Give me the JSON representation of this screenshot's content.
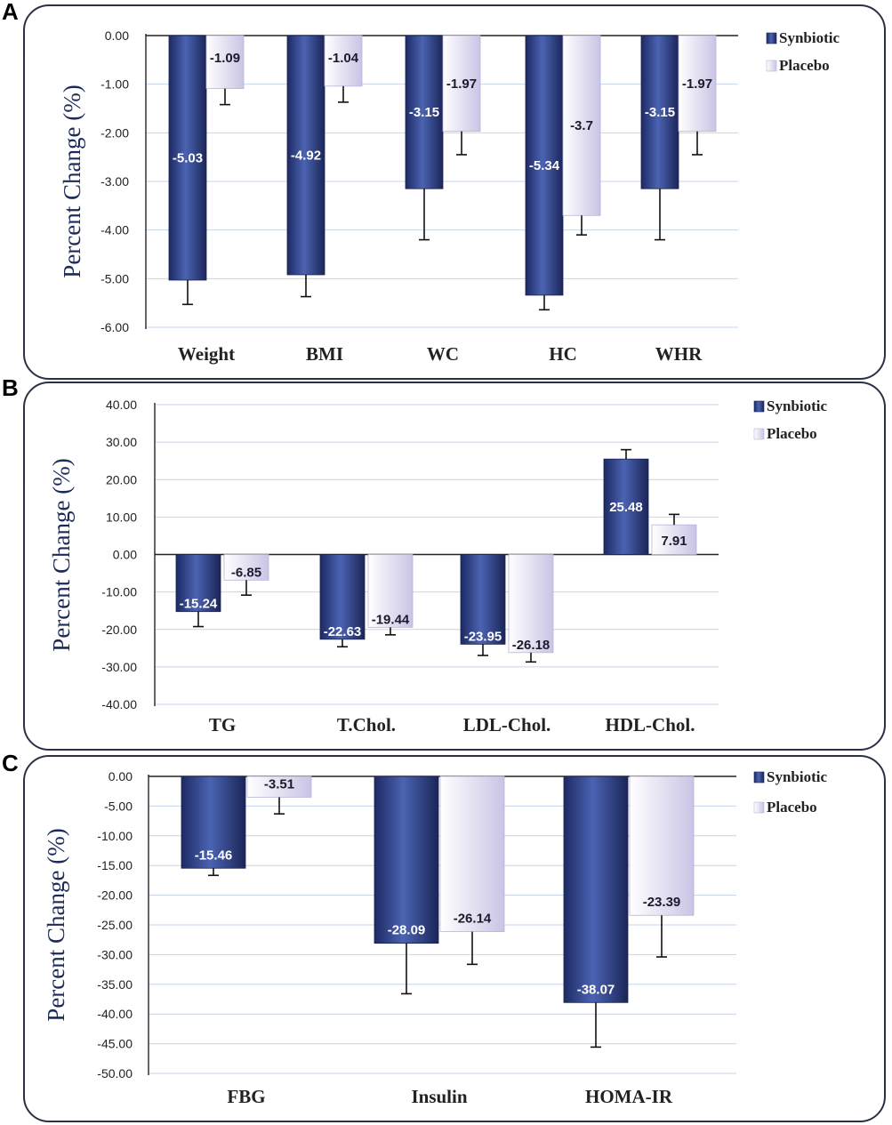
{
  "panels": [
    {
      "letter": "A",
      "legend": [
        "Synbiotic",
        "Placebo"
      ]
    },
    {
      "letter": "B",
      "legend": [
        "Synbiotic",
        "Placebo"
      ]
    },
    {
      "letter": "C",
      "legend": [
        "Synbiotic",
        "Placebo"
      ]
    }
  ],
  "colors": {
    "synbiotic_top": "#2d3f82",
    "synbiotic_mid": "#4a63b6",
    "synbiotic_bottom": "#1a2456",
    "placebo_light": "#ffffff",
    "placebo_dark": "#cbc7e6",
    "panel_border": "#2a3147",
    "grid": "#c6d4ec"
  },
  "chart_data": [
    {
      "type": "bar",
      "title": "",
      "xlabel": "",
      "ylabel": "Percent Change (%)",
      "ylim": [
        -6,
        0
      ],
      "yticks": [
        "0.00",
        "-1.00",
        "-2.00",
        "-3.00",
        "-4.00",
        "-5.00",
        "-6.00"
      ],
      "categories": [
        "Weight",
        "BMI",
        "WC",
        "HC",
        "WHR"
      ],
      "series": [
        {
          "name": "Synbiotic",
          "values": [
            -5.03,
            -4.92,
            -3.15,
            -5.34,
            -3.15
          ],
          "labels": [
            "-5.03",
            "-4.92",
            "-3.15",
            "-5.34",
            "-3.15"
          ],
          "errors": [
            0.5,
            0.45,
            1.05,
            0.3,
            1.05
          ]
        },
        {
          "name": "Placebo",
          "values": [
            -1.09,
            -1.04,
            -1.97,
            -3.7,
            -1.97
          ],
          "labels": [
            "-1.09",
            "-1.04",
            "-1.97",
            "-3.7",
            "-1.97"
          ],
          "errors": [
            0.33,
            0.33,
            0.48,
            0.4,
            0.48
          ]
        }
      ]
    },
    {
      "type": "bar",
      "title": "",
      "xlabel": "",
      "ylabel": "Percent Change (%)",
      "ylim": [
        -40,
        40
      ],
      "yticks": [
        "40.00",
        "30.00",
        "20.00",
        "10.00",
        "0.00",
        "-10.00",
        "-20.00",
        "-30.00",
        "-40.00"
      ],
      "categories": [
        "TG",
        "T.Chol.",
        "LDL-Chol.",
        "HDL-Chol."
      ],
      "series": [
        {
          "name": "Synbiotic",
          "values": [
            -15.24,
            -22.63,
            -23.95,
            25.48
          ],
          "labels": [
            "-15.24",
            "-22.63",
            "-23.95",
            "25.48"
          ],
          "errors": [
            4,
            2,
            3,
            2.5
          ]
        },
        {
          "name": "Placebo",
          "values": [
            -6.85,
            -19.44,
            -26.18,
            7.91
          ],
          "labels": [
            "-6.85",
            "-19.44",
            "-26.18",
            "7.91"
          ],
          "errors": [
            4,
            2,
            2.5,
            2.8
          ]
        }
      ]
    },
    {
      "type": "bar",
      "title": "",
      "xlabel": "",
      "ylabel": "Percent Change (%)",
      "ylim": [
        -50,
        0
      ],
      "yticks": [
        "0.00",
        "-5.00",
        "-10.00",
        "-15.00",
        "-20.00",
        "-25.00",
        "-30.00",
        "-35.00",
        "-40.00",
        "-45.00",
        "-50.00"
      ],
      "categories": [
        "FBG",
        "Insulin",
        "HOMA-IR"
      ],
      "series": [
        {
          "name": "Synbiotic",
          "values": [
            -15.46,
            -28.09,
            -38.07
          ],
          "labels": [
            "-15.46",
            "-28.09",
            "-38.07"
          ],
          "errors": [
            1.2,
            8.5,
            7.5
          ]
        },
        {
          "name": "Placebo",
          "values": [
            -3.51,
            -26.14,
            -23.39
          ],
          "labels": [
            "-3.51",
            "-26.14",
            "-23.39"
          ],
          "errors": [
            2.8,
            5.5,
            7
          ]
        }
      ]
    }
  ]
}
